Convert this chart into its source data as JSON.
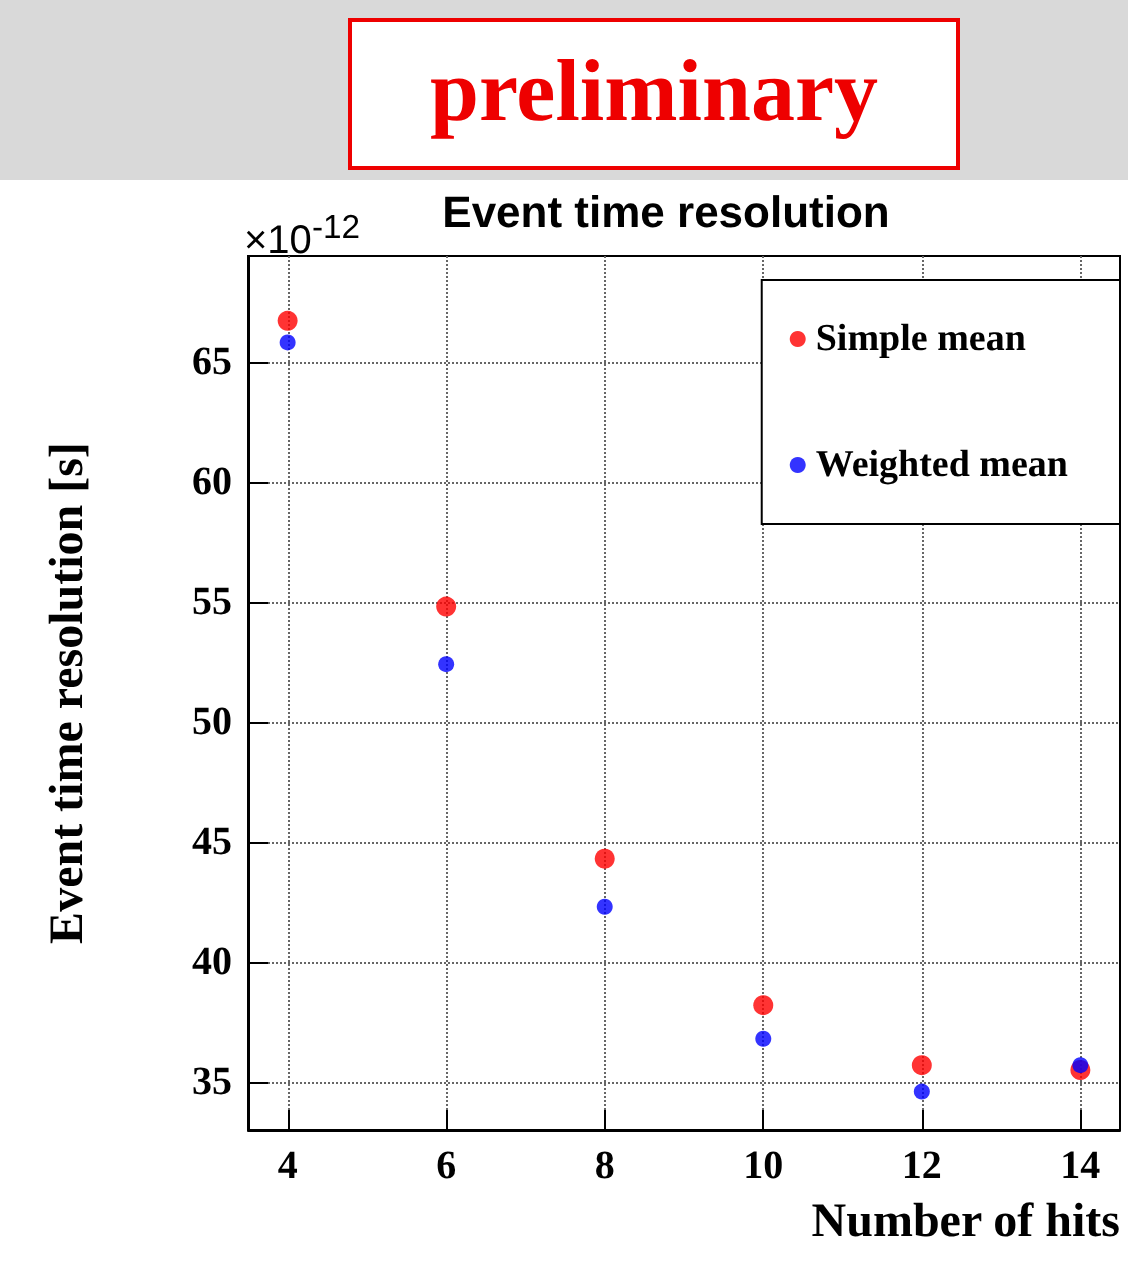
{
  "chart_data": {
    "type": "scatter",
    "title": "Event time resolution",
    "xlabel": "Number of hits",
    "ylabel": "Event time resolution [s]",
    "annotations": [
      "preliminary",
      "×10$^{-12}$"
    ],
    "x": [
      4,
      6,
      8,
      10,
      12,
      14
    ],
    "series": [
      {
        "name": "Simple mean",
        "color": "#ff0000",
        "values": [
          66.7,
          54.8,
          44.3,
          38.2,
          35.7,
          35.5
        ]
      },
      {
        "name": "Weighted mean",
        "color": "#0000ff",
        "values": [
          65.8,
          52.4,
          42.3,
          36.8,
          34.6,
          35.7
        ]
      }
    ],
    "xlim": [
      3.5,
      14.5
    ],
    "xticks": [
      4,
      6,
      8,
      10,
      12,
      14
    ],
    "ylim": [
      33,
      69.4
    ],
    "yticks": [
      35,
      40,
      45,
      50,
      55,
      60,
      65
    ],
    "grid": true,
    "legend": "top right",
    "marker": "circle"
  }
}
